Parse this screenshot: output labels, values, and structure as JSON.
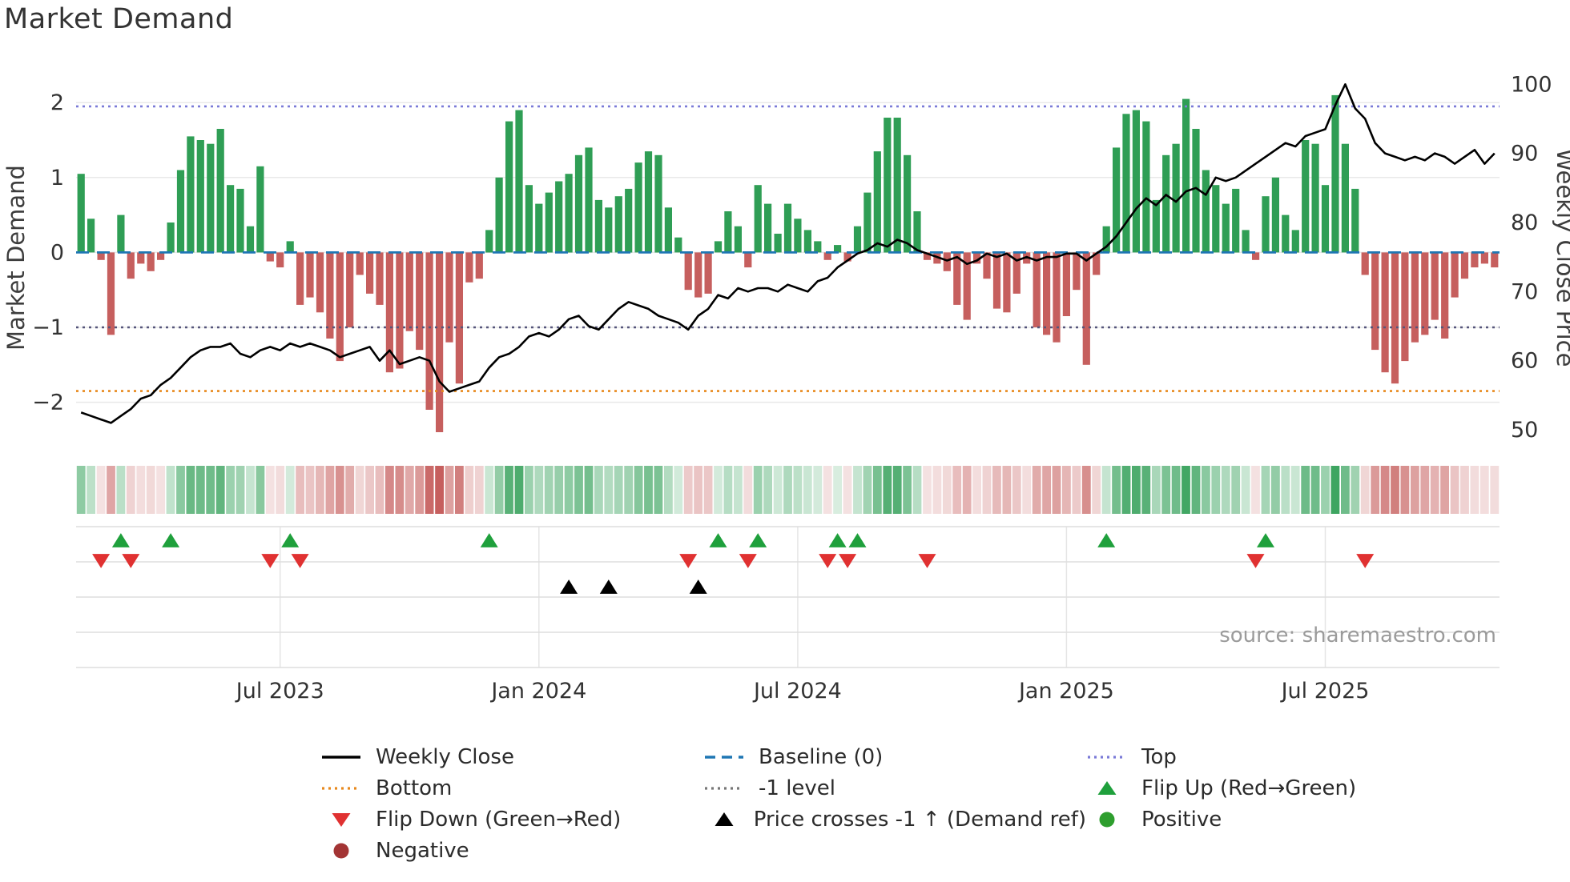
{
  "title": "Market Demand",
  "source_note": "source: sharemaestro.com",
  "axes": {
    "left_label": "Market Demand",
    "right_label": "Weekly Close Price",
    "left_ticks": [
      2,
      1,
      0,
      -1,
      -2
    ],
    "right_ticks": [
      100,
      90,
      80,
      70,
      60,
      50
    ]
  },
  "colors": {
    "positive_bar": "#2f9e55",
    "negative_bar": "#c65f5e",
    "price_line": "#000000",
    "baseline": "#1f77b4",
    "top_line": "#7b7bd8",
    "bottom_line": "#e8891d",
    "minus_one_line": "#55557a",
    "flip_up": "#1fa03c",
    "flip_down": "#e03131",
    "price_cross": "#000000",
    "positive_dot": "#2e9e2e",
    "negative_dot": "#a33434",
    "grid": "#e9e9e9"
  },
  "chart_data": {
    "type": "bar+line",
    "x_unit": "week",
    "left_range": [
      -2.57,
      2.43
    ],
    "right_range": [
      47.8,
      102.0
    ],
    "reference_lines": {
      "top": 1.95,
      "baseline": 0,
      "minus_one": -1,
      "bottom": -1.85
    },
    "x_ticks": [
      {
        "label": "Jul 2023",
        "week": 20
      },
      {
        "label": "Jan 2024",
        "week": 46
      },
      {
        "label": "Jul 2024",
        "week": 72
      },
      {
        "label": "Jan 2025",
        "week": 99
      },
      {
        "label": "Jul 2025",
        "week": 125
      }
    ],
    "series": [
      {
        "name": "Market Demand",
        "type": "bar",
        "axis": "left",
        "values": [
          1.05,
          0.45,
          -0.1,
          -1.1,
          0.5,
          -0.35,
          -0.15,
          -0.25,
          -0.1,
          0.4,
          1.1,
          1.55,
          1.5,
          1.45,
          1.65,
          0.9,
          0.85,
          0.35,
          1.15,
          -0.12,
          -0.2,
          0.15,
          -0.7,
          -0.6,
          -0.8,
          -1.15,
          -1.45,
          -1.0,
          -0.3,
          -0.55,
          -0.7,
          -1.6,
          -1.55,
          -1.05,
          -1.3,
          -2.1,
          -2.4,
          -1.2,
          -1.75,
          -0.4,
          -0.35,
          0.3,
          1.0,
          1.75,
          1.9,
          0.9,
          0.65,
          0.8,
          0.95,
          1.05,
          1.3,
          1.4,
          0.7,
          0.6,
          0.75,
          0.85,
          1.2,
          1.35,
          1.3,
          0.6,
          0.2,
          -0.5,
          -0.6,
          -0.55,
          0.15,
          0.55,
          0.35,
          -0.2,
          0.9,
          0.65,
          0.25,
          0.65,
          0.45,
          0.3,
          0.15,
          -0.1,
          0.1,
          -0.12,
          0.35,
          0.8,
          1.35,
          1.8,
          1.8,
          1.3,
          0.55,
          -0.1,
          -0.15,
          -0.25,
          -0.7,
          -0.9,
          -0.15,
          -0.35,
          -0.75,
          -0.8,
          -0.55,
          -0.15,
          -1.0,
          -1.1,
          -1.2,
          -0.85,
          -0.5,
          -1.5,
          -0.3,
          0.35,
          1.4,
          1.85,
          1.9,
          1.75,
          0.7,
          1.3,
          1.45,
          2.05,
          1.65,
          1.1,
          0.9,
          0.65,
          0.85,
          0.3,
          -0.1,
          0.75,
          1.0,
          0.5,
          0.3,
          1.5,
          1.45,
          0.9,
          2.1,
          1.45,
          0.85,
          -0.3,
          -1.3,
          -1.6,
          -1.75,
          -1.45,
          -1.2,
          -1.1,
          -0.9,
          -1.15,
          -0.6,
          -0.35,
          -0.2,
          -0.15,
          -0.2
        ]
      },
      {
        "name": "Weekly Close",
        "type": "line",
        "axis": "right",
        "values": [
          52.5,
          52.0,
          51.5,
          51.0,
          52.0,
          53.0,
          54.5,
          55.0,
          56.5,
          57.5,
          59.0,
          60.5,
          61.5,
          62.0,
          62.0,
          62.5,
          61.0,
          60.5,
          61.5,
          62.0,
          61.5,
          62.5,
          62.0,
          62.5,
          62.0,
          61.5,
          60.5,
          61.0,
          61.5,
          62.0,
          60.0,
          61.5,
          59.5,
          60.0,
          60.5,
          60.0,
          57.0,
          55.5,
          56.0,
          56.5,
          57.0,
          59.0,
          60.5,
          61.0,
          62.0,
          63.5,
          64.0,
          63.5,
          64.5,
          66.0,
          66.5,
          65.0,
          64.5,
          66.0,
          67.5,
          68.5,
          68.0,
          67.5,
          66.5,
          66.0,
          65.5,
          64.5,
          66.5,
          67.5,
          69.5,
          69.0,
          70.5,
          70.0,
          70.5,
          70.5,
          70.0,
          71.0,
          70.5,
          70.0,
          71.5,
          72.0,
          73.5,
          74.5,
          75.5,
          76.0,
          77.0,
          76.5,
          77.5,
          77.0,
          76.0,
          75.5,
          75.0,
          74.5,
          75.0,
          74.0,
          74.5,
          75.5,
          75.0,
          75.5,
          74.5,
          75.0,
          74.5,
          75.0,
          75.0,
          75.5,
          75.5,
          74.5,
          75.5,
          76.5,
          78.0,
          80.0,
          82.0,
          83.5,
          82.5,
          84.0,
          83.0,
          84.5,
          85.0,
          84.0,
          86.5,
          86.0,
          86.5,
          87.5,
          88.5,
          89.5,
          90.5,
          91.5,
          91.0,
          92.5,
          93.0,
          93.5,
          97.0,
          100.0,
          96.5,
          95.0,
          91.5,
          90.0,
          89.5,
          89.0,
          89.5,
          89.0,
          90.0,
          89.5,
          88.5,
          89.5,
          90.5,
          88.5,
          90.0
        ]
      }
    ],
    "markers": {
      "flip_up_weeks": [
        4,
        9,
        21,
        41,
        64,
        68,
        76,
        78,
        103,
        119
      ],
      "flip_down_weeks": [
        2,
        5,
        19,
        22,
        61,
        67,
        75,
        77,
        85,
        118,
        129
      ],
      "price_cross_weeks": [
        49,
        53,
        62
      ]
    },
    "heatmap": {
      "source": "demand",
      "max_abs": 2.3
    }
  },
  "legend": [
    {
      "label": "Weekly Close",
      "marker": "line-solid",
      "color": "#000000"
    },
    {
      "label": "Baseline (0)",
      "marker": "line-dashed",
      "color": "#1f77b4"
    },
    {
      "label": "Top",
      "marker": "line-dotted",
      "color": "#7b7bd8"
    },
    {
      "label": "Bottom",
      "marker": "line-dotted",
      "color": "#e8891d"
    },
    {
      "label": "-1 level",
      "marker": "line-dotted",
      "color": "#777777"
    },
    {
      "label": "Flip Up (Red→Green)",
      "marker": "triangle-up",
      "color": "#1fa03c"
    },
    {
      "label": "Flip Down (Green→Red)",
      "marker": "triangle-down",
      "color": "#e03131"
    },
    {
      "label": "Price crosses -1 ↑ (Demand ref)",
      "marker": "triangle-up",
      "color": "#000000"
    },
    {
      "label": "Positive",
      "marker": "dot",
      "color": "#2e9e2e"
    },
    {
      "label": "Negative",
      "marker": "dot",
      "color": "#a33434"
    }
  ]
}
